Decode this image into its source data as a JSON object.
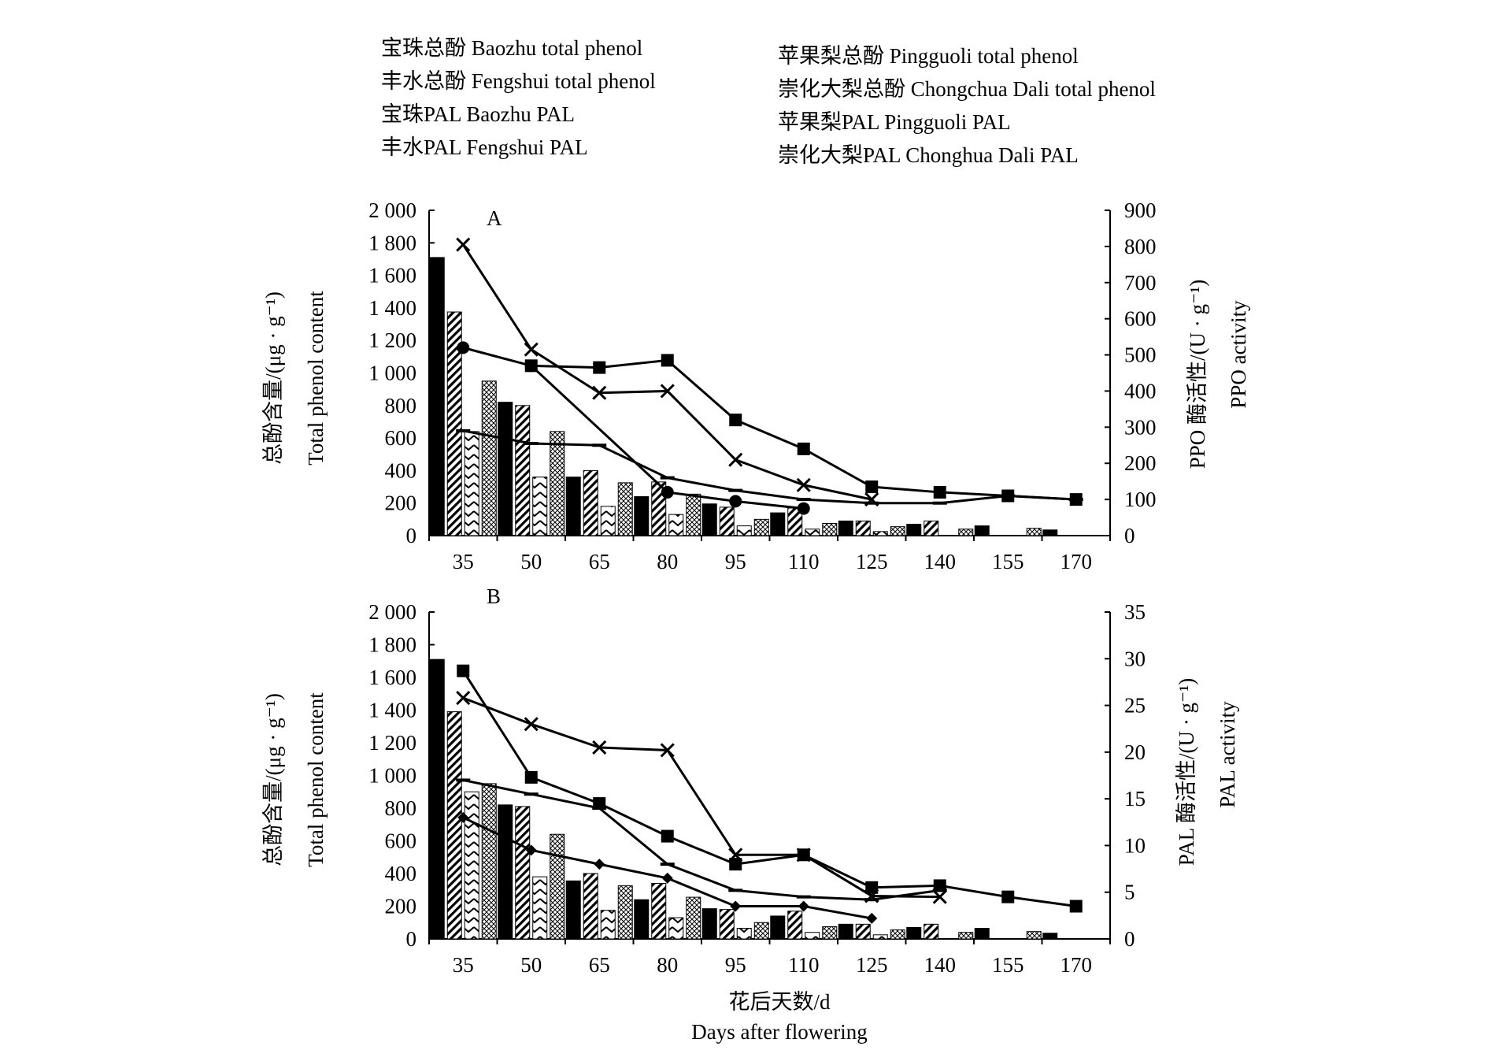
{
  "legend": {
    "left": [
      "宝珠总酚 Baozhu total phenol",
      "丰水总酚 Fengshui total phenol",
      "宝珠PAL Baozhu PAL",
      "丰水PAL Fengshui PAL"
    ],
    "right": [
      "苹果梨总酚 Pingguoli total phenol",
      "崇化大梨总酚 Chongchua Dali total phenol",
      "苹果梨PAL Pingguoli PAL",
      "崇化大梨PAL Chonghua Dali PAL"
    ]
  },
  "xaxis": {
    "label_cn": "花后天数/d",
    "label_en": "Days after flowering"
  },
  "chart_data": [
    {
      "panel": "A",
      "type": "bar",
      "categories": [
        "35",
        "50",
        "65",
        "80",
        "95",
        "110",
        "125",
        "140",
        "155",
        "170"
      ],
      "ylabel_cn": "总酚含量/(μg · g⁻¹)",
      "ylabel_en": "Total phenol content",
      "y2label_cn": "PPO 酶活性/(U · g⁻¹)",
      "y2label_en": "PPO activity",
      "ylim": [
        0,
        2000
      ],
      "yticks": [
        "0",
        "200",
        "400",
        "600",
        "800",
        "1 000",
        "1 200",
        "1 400",
        "1 600",
        "1 800",
        "2 000"
      ],
      "y2lim": [
        0,
        900
      ],
      "y2ticks": [
        "0",
        "100",
        "200",
        "300",
        "400",
        "500",
        "600",
        "700",
        "800",
        "900"
      ],
      "bars": [
        {
          "name": "Baozhu total phenol",
          "values": [
            1710,
            820,
            360,
            240,
            195,
            140,
            90,
            70,
            60,
            35
          ]
        },
        {
          "name": "Fengshui total phenol",
          "values": [
            1375,
            800,
            400,
            330,
            175,
            170,
            90,
            90,
            null,
            null
          ]
        },
        {
          "name": "Pingguoli total phenol",
          "values": [
            640,
            360,
            180,
            130,
            60,
            40,
            25,
            null,
            null,
            null
          ]
        },
        {
          "name": "Chongchua Dali total phenol",
          "values": [
            950,
            640,
            325,
            255,
            100,
            75,
            55,
            40,
            45,
            null
          ]
        }
      ],
      "lines": [
        {
          "marker": "square",
          "values": [
            null,
            470,
            465,
            485,
            320,
            240,
            135,
            120,
            110,
            100
          ]
        },
        {
          "marker": "x",
          "values": [
            805,
            515,
            395,
            400,
            210,
            140,
            100,
            null,
            null,
            null
          ]
        },
        {
          "marker": "circle",
          "values": [
            520,
            470,
            null,
            120,
            95,
            75,
            null,
            null,
            null,
            null
          ]
        },
        {
          "marker": "dash",
          "values": [
            290,
            255,
            250,
            160,
            125,
            100,
            90,
            90,
            110,
            100
          ]
        }
      ]
    },
    {
      "panel": "B",
      "type": "bar",
      "categories": [
        "35",
        "50",
        "65",
        "80",
        "95",
        "110",
        "125",
        "140",
        "155",
        "170"
      ],
      "ylabel_cn": "总酚含量/(μg · g⁻¹)",
      "ylabel_en": "Total phenol content",
      "y2label_cn": "PAL 酶活性/(U · g⁻¹)",
      "y2label_en": "PAL activity",
      "ylim": [
        0,
        2000
      ],
      "yticks": [
        "0",
        "200",
        "400",
        "600",
        "800",
        "1 000",
        "1 200",
        "1 400",
        "1 600",
        "1 800",
        "2 000"
      ],
      "y2lim": [
        0,
        35
      ],
      "y2ticks": [
        "0",
        "5",
        "10",
        "15",
        "20",
        "25",
        "30",
        "35"
      ],
      "bars": [
        {
          "name": "Baozhu total phenol",
          "values": [
            1710,
            820,
            355,
            240,
            185,
            140,
            90,
            70,
            65,
            35
          ]
        },
        {
          "name": "Fengshui total phenol",
          "values": [
            1390,
            810,
            400,
            340,
            180,
            170,
            90,
            90,
            null,
            null
          ]
        },
        {
          "name": "Pingguoli total phenol",
          "values": [
            900,
            380,
            175,
            130,
            65,
            40,
            25,
            null,
            null,
            null
          ]
        },
        {
          "name": "Chongchua Dali total phenol",
          "values": [
            950,
            640,
            325,
            255,
            100,
            75,
            55,
            40,
            45,
            null
          ]
        }
      ],
      "lines": [
        {
          "name": "Baozhu PAL",
          "marker": "square",
          "values": [
            28.7,
            17.3,
            14.5,
            11.0,
            8.0,
            9.0,
            5.5,
            5.7,
            4.5,
            3.5
          ]
        },
        {
          "name": "Fengshui PAL",
          "marker": "x",
          "values": [
            25.8,
            23.0,
            20.5,
            20.2,
            9.0,
            9.0,
            4.6,
            4.5,
            null,
            null
          ]
        },
        {
          "name": "Pingguoli PAL",
          "marker": "dash",
          "values": [
            17.0,
            15.5,
            14.0,
            8.0,
            5.2,
            4.5,
            4.2,
            5.2,
            null,
            null
          ]
        },
        {
          "name": "Chonghua Dali PAL",
          "marker": "diamond",
          "values": [
            13.0,
            9.5,
            8.0,
            6.5,
            3.5,
            3.5,
            2.2,
            null,
            null,
            null
          ]
        }
      ]
    }
  ]
}
